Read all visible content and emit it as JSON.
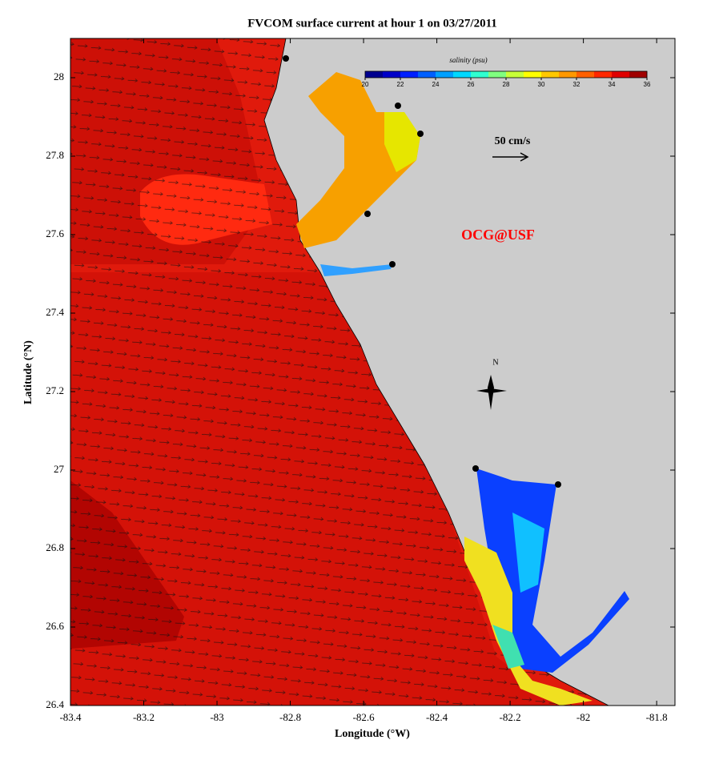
{
  "chart_data": {
    "type": "vector_field",
    "title": "FVCOM surface current at hour 1 on 03/27/2011",
    "xlabel": "Longitude (°W)",
    "ylabel": "Latitude (°N)",
    "xlim": [
      -83.4,
      -81.75
    ],
    "ylim": [
      26.4,
      28.1
    ],
    "xticks": [
      -83.4,
      -83.2,
      -83,
      -82.8,
      -82.6,
      -82.4,
      -82.2,
      -82,
      -81.8
    ],
    "yticks": [
      26.4,
      26.6,
      26.8,
      27,
      27.2,
      27.4,
      27.6,
      27.8,
      28
    ],
    "colorbar": {
      "label": "salinity (psu)",
      "lim": [
        20,
        36
      ],
      "ticks": [
        20,
        22,
        24,
        26,
        28,
        30,
        32,
        34,
        36
      ],
      "colors": [
        "#00008f",
        "#0000c8",
        "#0020ff",
        "#0060ff",
        "#00a0ff",
        "#00d8ff",
        "#30ffd0",
        "#80ff80",
        "#c8ff38",
        "#ffff00",
        "#ffc800",
        "#ff9800",
        "#ff6000",
        "#ff2800",
        "#e00000",
        "#a00000"
      ]
    },
    "scale_label": "50 cm/s",
    "watermark": "OCG@USF",
    "north_label": "N"
  }
}
